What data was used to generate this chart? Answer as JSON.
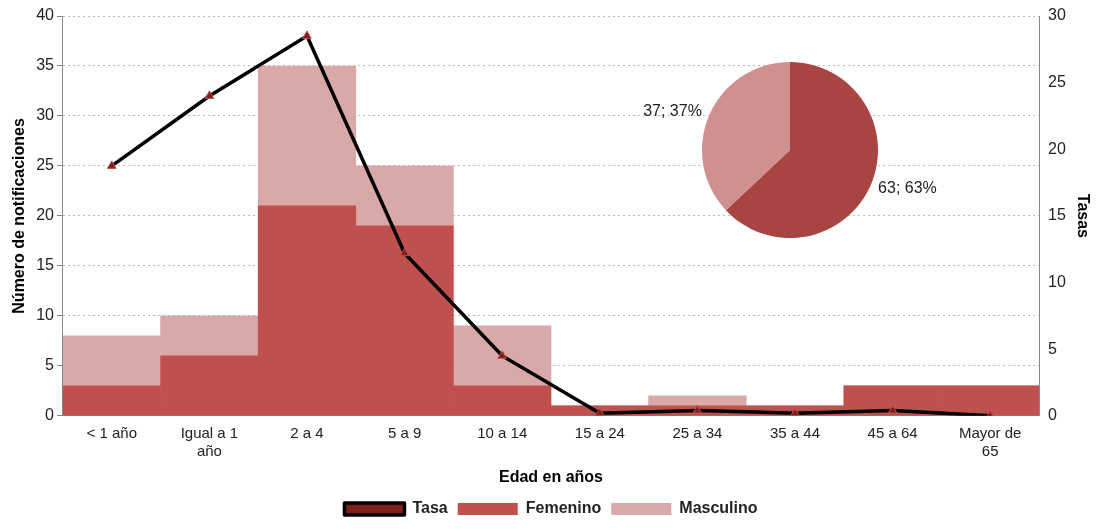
{
  "chart_data": [
    {
      "type": "bar",
      "xlabel": "Edad en años",
      "ylabel": "Número de notificaciones",
      "y2label": "Tasas",
      "categories": [
        "< 1 año",
        "Igual a 1 año",
        "2 a 4",
        "5 a 9",
        "10 a 14",
        "15 a 24",
        "25 a 34",
        "35 a 44",
        "45 a 64",
        "Mayor de 65"
      ],
      "stacked": true,
      "series": [
        {
          "name": "Femenino",
          "color": "#c0504d",
          "values": [
            3,
            6,
            21,
            19,
            3,
            1,
            1,
            1,
            3,
            3
          ]
        },
        {
          "name": "Masculino",
          "color": "#d9a9a9",
          "values": [
            5,
            4,
            14,
            6,
            6,
            0,
            1,
            0,
            0,
            0
          ]
        },
        {
          "name": "Tasa",
          "type": "line",
          "axis": "y2",
          "color": "#000000",
          "marker": "triangle",
          "values": [
            18.75,
            24,
            28.5,
            12.2,
            4.5,
            0.2,
            0.4,
            0.2,
            0.4,
            0
          ]
        }
      ],
      "ylim": [
        0,
        40
      ],
      "yticks": [
        0,
        5,
        10,
        15,
        20,
        25,
        30,
        35,
        40
      ],
      "y2lim": [
        0,
        30
      ],
      "y2ticks": [
        0,
        5,
        10,
        15,
        20,
        25,
        30
      ],
      "grid": "y",
      "legend": "bottom"
    },
    {
      "type": "pie",
      "categories": [
        null,
        null
      ],
      "values": [
        63,
        37
      ],
      "colors": [
        "#a84543",
        "#d19090"
      ],
      "value_labels": [
        "63; 63%",
        "37; 37%"
      ]
    }
  ]
}
